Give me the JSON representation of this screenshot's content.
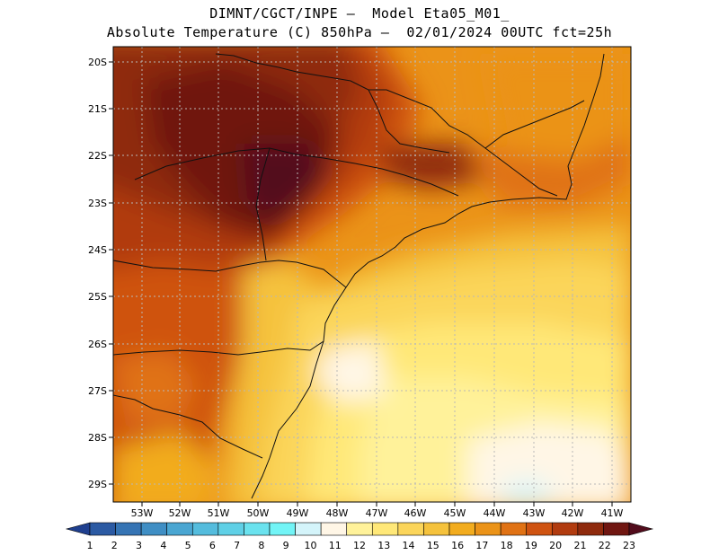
{
  "header": {
    "line1": "DIMNT/CGCT/INPE —  Model Eta05_M01_",
    "line2": "Absolute Temperature (C) 850hPa —  02/01/2024 00UTC fct=25h"
  },
  "map": {
    "lat_labels": [
      "20S",
      "21S",
      "22S",
      "23S",
      "24S",
      "25S",
      "26S",
      "27S",
      "28S",
      "29S"
    ],
    "lon_labels": [
      "53W",
      "52W",
      "51W",
      "50W",
      "49W",
      "48W",
      "47W",
      "46W",
      "45W",
      "44W",
      "43W",
      "42W",
      "41W"
    ]
  },
  "colorbar": {
    "labels": [
      "1",
      "2",
      "3",
      "4",
      "5",
      "6",
      "7",
      "8",
      "9",
      "10",
      "11",
      "12",
      "13",
      "14",
      "15",
      "16",
      "17",
      "18",
      "19",
      "20",
      "21",
      "22",
      "23"
    ],
    "colors": [
      "#1f3f8f",
      "#2b5aa3",
      "#3574b4",
      "#3f8ec4",
      "#4aa6d2",
      "#54bcdd",
      "#5fd0e6",
      "#6ae2ee",
      "#72f4f6",
      "#d4f4fa",
      "#fff6e6",
      "#fff29a",
      "#ffe878",
      "#fbd55a",
      "#f5c23c",
      "#f2ac1e",
      "#eb9318",
      "#e07214",
      "#cf5311",
      "#b13b0f",
      "#8f2a0d",
      "#701611",
      "#520c1c"
    ]
  }
}
